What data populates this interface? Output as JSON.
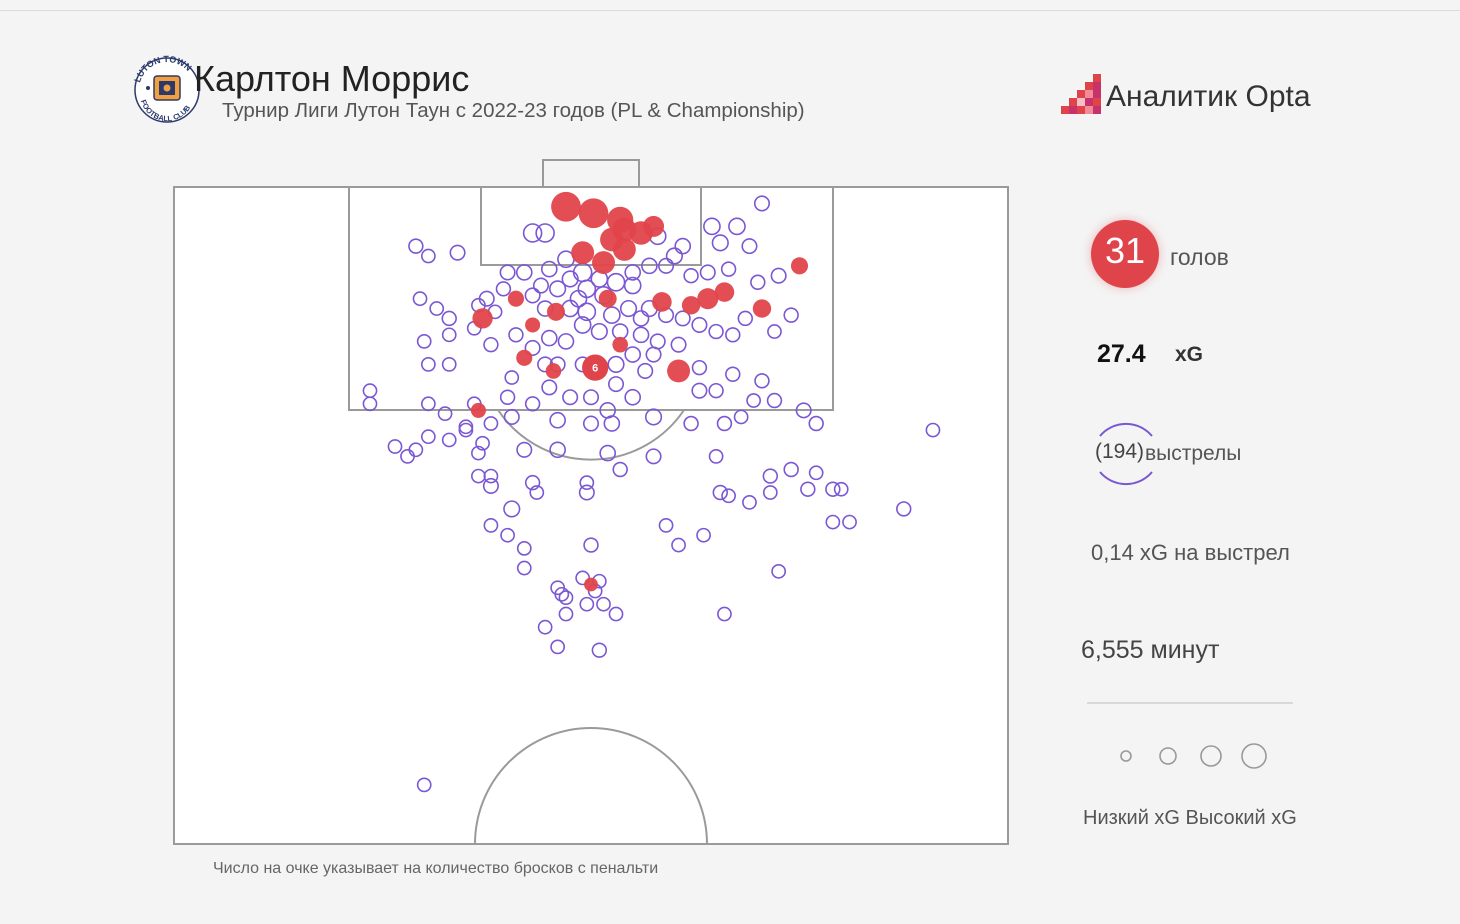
{
  "header": {
    "title": "Карлтон Моррис",
    "subtitle": "Турнир Лиги Лутон Таун с 2022-23 годов (PL & Championship)",
    "brand": "Аналитик Opta",
    "crest_text_top": "LUTON TOWN",
    "crest_text_bottom": "FOOTBALL CLUB"
  },
  "stats": {
    "goals_value": "31",
    "goals_label": "голов",
    "xg_value": "27.4",
    "xg_label": "xG",
    "shots_value": "(194)",
    "shots_label": "выстрелы",
    "xg_per_shot": "0,14 xG на выстрел",
    "minutes": "6,555 минут"
  },
  "legend": {
    "text": "Низкий xG Высокий xG"
  },
  "footnote": "Число на очке указывает на количество бросков с пенальти",
  "colors": {
    "goal": "#e0444b",
    "shot": "#7b57d4",
    "pitch_line": "#9a9a9a"
  },
  "chart_data": {
    "type": "scatter",
    "coordinate_system": "Opta pitch coordinates (x 0-100 across width, y 0-100 from goal line toward halfway)",
    "penalty_marker": {
      "x": 50.5,
      "y": 27.5,
      "label": "6",
      "xg": 0.4
    },
    "goals": [
      [
        47,
        3,
        0.55
      ],
      [
        50.3,
        4,
        0.55
      ],
      [
        53.5,
        5,
        0.4
      ],
      [
        54,
        6.5,
        0.32
      ],
      [
        56,
        7,
        0.3
      ],
      [
        57.5,
        6,
        0.22
      ],
      [
        52.5,
        8,
        0.3
      ],
      [
        54,
        9.5,
        0.28
      ],
      [
        49,
        10,
        0.28
      ],
      [
        51.5,
        11.5,
        0.28
      ],
      [
        66,
        16,
        0.18
      ],
      [
        64,
        17,
        0.22
      ],
      [
        41,
        17,
        0.1
      ],
      [
        45.8,
        19,
        0.14
      ],
      [
        37,
        20,
        0.2
      ],
      [
        62,
        18,
        0.15
      ],
      [
        58.5,
        17.5,
        0.18
      ],
      [
        52,
        17,
        0.14
      ],
      [
        70.5,
        18.5,
        0.15
      ],
      [
        75,
        12,
        0.12
      ],
      [
        53.5,
        24,
        0.09
      ],
      [
        43,
        21,
        0.08
      ],
      [
        42,
        26,
        0.1
      ],
      [
        60.5,
        28,
        0.28
      ],
      [
        45.5,
        28,
        0.09
      ],
      [
        36.5,
        34,
        0.08
      ],
      [
        50,
        60.5,
        0.06
      ]
    ],
    "shots": [
      [
        29,
        9,
        0.06
      ],
      [
        34,
        10,
        0.07
      ],
      [
        30.5,
        10.5,
        0.05
      ],
      [
        43,
        7,
        0.14
      ],
      [
        44.5,
        7,
        0.14
      ],
      [
        70.5,
        2.5,
        0.07
      ],
      [
        67.5,
        6,
        0.1
      ],
      [
        65.5,
        8.5,
        0.09
      ],
      [
        64.5,
        6,
        0.1
      ],
      [
        58,
        7.5,
        0.1
      ],
      [
        61,
        9,
        0.08
      ],
      [
        60,
        10.5,
        0.09
      ],
      [
        59,
        12,
        0.07
      ],
      [
        57,
        12,
        0.08
      ],
      [
        55,
        13,
        0.08
      ],
      [
        69,
        9,
        0.07
      ],
      [
        72.5,
        13.5,
        0.07
      ],
      [
        70,
        14.5,
        0.06
      ],
      [
        66.5,
        12.5,
        0.06
      ],
      [
        64,
        13,
        0.07
      ],
      [
        62,
        13.5,
        0.06
      ],
      [
        47,
        11,
        0.1
      ],
      [
        45,
        12.5,
        0.08
      ],
      [
        42,
        13,
        0.08
      ],
      [
        40,
        13,
        0.07
      ],
      [
        49,
        13,
        0.14
      ],
      [
        51,
        14,
        0.1
      ],
      [
        53,
        14.5,
        0.12
      ],
      [
        55,
        15,
        0.1
      ],
      [
        49.5,
        15.5,
        0.12
      ],
      [
        47.5,
        14,
        0.09
      ],
      [
        51.5,
        16.5,
        0.12
      ],
      [
        48.5,
        17,
        0.1
      ],
      [
        46,
        15.5,
        0.09
      ],
      [
        44,
        15,
        0.07
      ],
      [
        43,
        16.5,
        0.07
      ],
      [
        39.5,
        15.5,
        0.06
      ],
      [
        37.5,
        17,
        0.07
      ],
      [
        44.5,
        18.5,
        0.08
      ],
      [
        47.5,
        18.5,
        0.1
      ],
      [
        49.5,
        19,
        0.12
      ],
      [
        52.5,
        19.5,
        0.1
      ],
      [
        54.5,
        18.5,
        0.09
      ],
      [
        57,
        18.5,
        0.09
      ],
      [
        56,
        20,
        0.08
      ],
      [
        59,
        19.5,
        0.07
      ],
      [
        61,
        20,
        0.07
      ],
      [
        63,
        21,
        0.07
      ],
      [
        65,
        22,
        0.06
      ],
      [
        67,
        22.5,
        0.06
      ],
      [
        68.5,
        20,
        0.06
      ],
      [
        72,
        22,
        0.05
      ],
      [
        74,
        19.5,
        0.06
      ],
      [
        49,
        21,
        0.1
      ],
      [
        51,
        22,
        0.09
      ],
      [
        53.5,
        22,
        0.08
      ],
      [
        56,
        22.5,
        0.08
      ],
      [
        58,
        23.5,
        0.07
      ],
      [
        60.5,
        24,
        0.07
      ],
      [
        55,
        25.5,
        0.08
      ],
      [
        57.5,
        25.5,
        0.07
      ],
      [
        47,
        23.5,
        0.08
      ],
      [
        45,
        23,
        0.08
      ],
      [
        43,
        24.5,
        0.07
      ],
      [
        41,
        22.5,
        0.06
      ],
      [
        38,
        24,
        0.06
      ],
      [
        36,
        21.5,
        0.05
      ],
      [
        33,
        20,
        0.06
      ],
      [
        31.5,
        18.5,
        0.05
      ],
      [
        29.5,
        17,
        0.05
      ],
      [
        36.5,
        18,
        0.05
      ],
      [
        38.5,
        19,
        0.05
      ],
      [
        33,
        22.5,
        0.05
      ],
      [
        30,
        23.5,
        0.05
      ],
      [
        33,
        27,
        0.05
      ],
      [
        30.5,
        27,
        0.05
      ],
      [
        44.5,
        27,
        0.07
      ],
      [
        46,
        27,
        0.07
      ],
      [
        49,
        27,
        0.07
      ],
      [
        53,
        27,
        0.09
      ],
      [
        56.5,
        28,
        0.07
      ],
      [
        63,
        27.5,
        0.06
      ],
      [
        67,
        28.5,
        0.06
      ],
      [
        70.5,
        29.5,
        0.06
      ],
      [
        65,
        31,
        0.06
      ],
      [
        63,
        31,
        0.07
      ],
      [
        55,
        32,
        0.08
      ],
      [
        52,
        34,
        0.08
      ],
      [
        53,
        30,
        0.07
      ],
      [
        50,
        32,
        0.07
      ],
      [
        47.5,
        32,
        0.07
      ],
      [
        45,
        30.5,
        0.07
      ],
      [
        43,
        33,
        0.06
      ],
      [
        40,
        32,
        0.06
      ],
      [
        40.5,
        35,
        0.07
      ],
      [
        46,
        35.5,
        0.08
      ],
      [
        50,
        36,
        0.07
      ],
      [
        52.5,
        36,
        0.08
      ],
      [
        57.5,
        35,
        0.09
      ],
      [
        62,
        36,
        0.06
      ],
      [
        66,
        36,
        0.06
      ],
      [
        68,
        35,
        0.05
      ],
      [
        69.5,
        32.5,
        0.05
      ],
      [
        72,
        32.5,
        0.06
      ],
      [
        75.5,
        34,
        0.07
      ],
      [
        77,
        36,
        0.06
      ],
      [
        38,
        36,
        0.05
      ],
      [
        35,
        36.5,
        0.05
      ],
      [
        33,
        38.5,
        0.05
      ],
      [
        30.5,
        38,
        0.05
      ],
      [
        29,
        40,
        0.05
      ],
      [
        26.5,
        39.5,
        0.05
      ],
      [
        37,
        39,
        0.05
      ],
      [
        42,
        40,
        0.07
      ],
      [
        46,
        40,
        0.08
      ],
      [
        52,
        40.5,
        0.08
      ],
      [
        57.5,
        41,
        0.07
      ],
      [
        23.5,
        31,
        0.05
      ],
      [
        23.5,
        33,
        0.05
      ],
      [
        30.5,
        33,
        0.05
      ],
      [
        32.5,
        34.5,
        0.05
      ],
      [
        36.5,
        40.5,
        0.05
      ],
      [
        36.5,
        44,
        0.05
      ],
      [
        38,
        44,
        0.05
      ],
      [
        38,
        45.5,
        0.07
      ],
      [
        40.5,
        49,
        0.09
      ],
      [
        49.5,
        45,
        0.05
      ],
      [
        43,
        45,
        0.06
      ],
      [
        43.5,
        46.5,
        0.05
      ],
      [
        53.5,
        43,
        0.06
      ],
      [
        49.5,
        46.5,
        0.07
      ],
      [
        71.5,
        44,
        0.06
      ],
      [
        74,
        43,
        0.06
      ],
      [
        77,
        43.5,
        0.05
      ],
      [
        76,
        46,
        0.06
      ],
      [
        79,
        46,
        0.06
      ],
      [
        80,
        46,
        0.05
      ],
      [
        65.5,
        46.5,
        0.06
      ],
      [
        69,
        48,
        0.05
      ],
      [
        71.5,
        46.5,
        0.05
      ],
      [
        79,
        51,
        0.05
      ],
      [
        81,
        51,
        0.05
      ],
      [
        87.5,
        49,
        0.06
      ],
      [
        91,
        37,
        0.05
      ],
      [
        38,
        51.5,
        0.05
      ],
      [
        40,
        53,
        0.05
      ],
      [
        42,
        55,
        0.05
      ],
      [
        42,
        58,
        0.05
      ],
      [
        50,
        54.5,
        0.06
      ],
      [
        60.5,
        54.5,
        0.05
      ],
      [
        63.5,
        53,
        0.05
      ],
      [
        59,
        51.5,
        0.05
      ],
      [
        46,
        61,
        0.05
      ],
      [
        46.5,
        62,
        0.05
      ],
      [
        50.5,
        61.5,
        0.05
      ],
      [
        51,
        60,
        0.05
      ],
      [
        47,
        62.5,
        0.05
      ],
      [
        49.5,
        63.5,
        0.05
      ],
      [
        51.5,
        63.5,
        0.05
      ],
      [
        47,
        65,
        0.05
      ],
      [
        53,
        65,
        0.05
      ],
      [
        66,
        65,
        0.05
      ],
      [
        44.5,
        67,
        0.05
      ],
      [
        46,
        70,
        0.05
      ],
      [
        51,
        70.5,
        0.06
      ],
      [
        35,
        37,
        0.05
      ],
      [
        36,
        33,
        0.05
      ],
      [
        28,
        41,
        0.05
      ],
      [
        40.5,
        29,
        0.05
      ],
      [
        65,
        41,
        0.05
      ],
      [
        66.5,
        47,
        0.05
      ],
      [
        72.5,
        58.5,
        0.05
      ],
      [
        49,
        59.5,
        0.05
      ],
      [
        30,
        91,
        0.05
      ]
    ]
  }
}
